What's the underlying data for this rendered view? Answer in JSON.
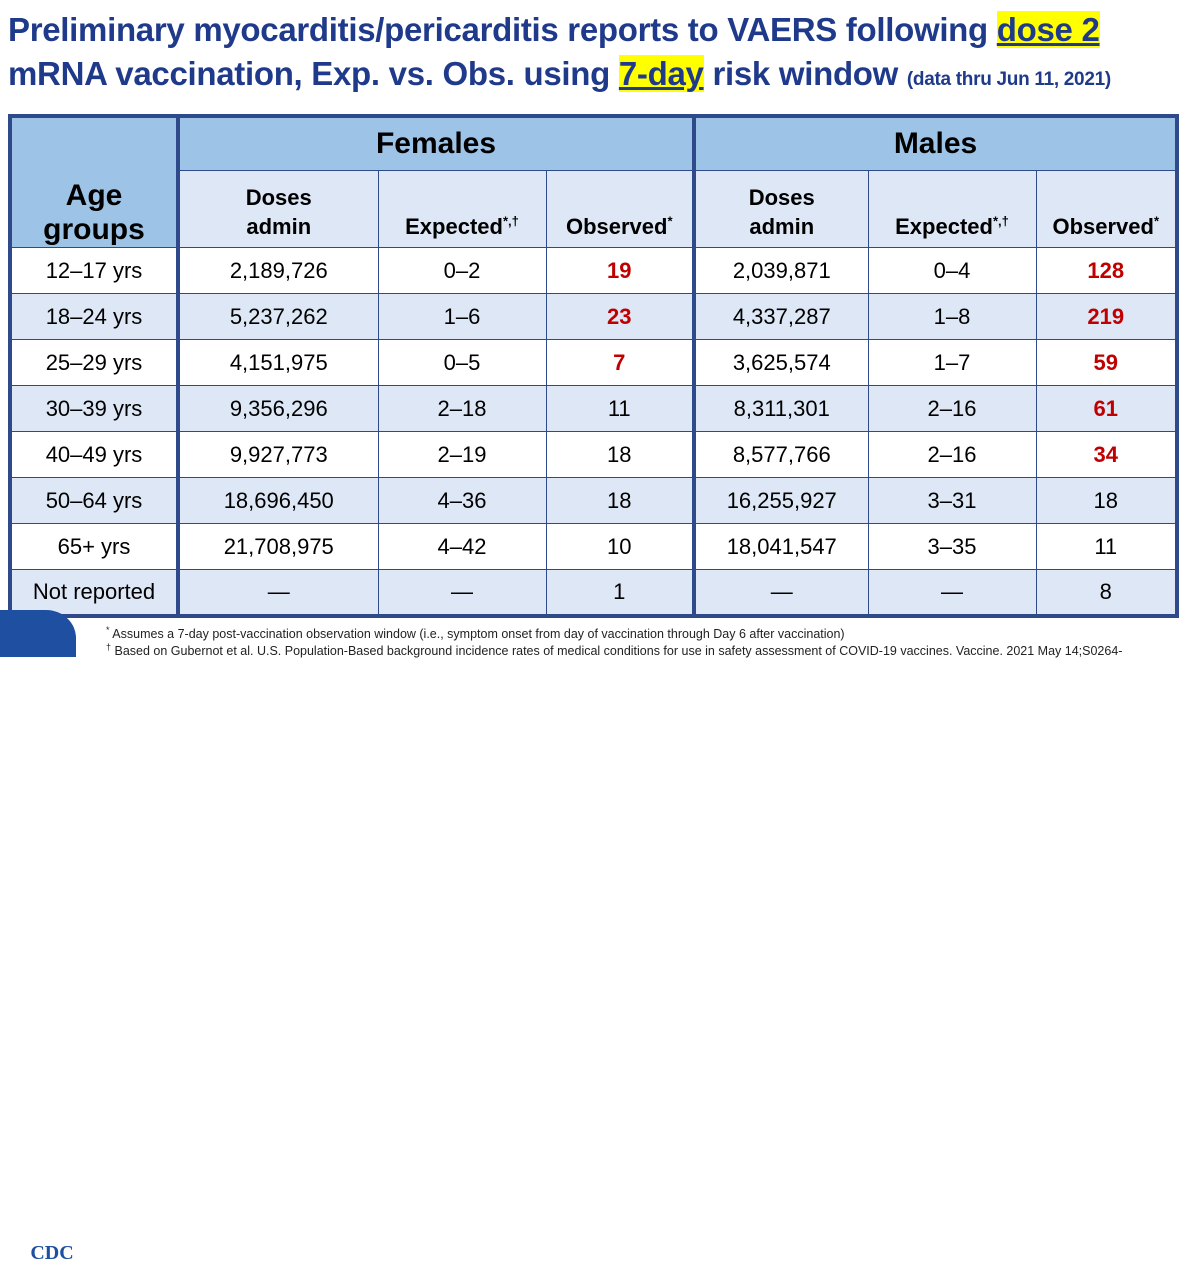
{
  "title": {
    "line1_prefix": "Preliminary myocarditis/pericarditis reports to VAERS following ",
    "line1_highlight": "dose 2",
    "line2_prefix": "mRNA vaccination, Exp. vs. Obs. using ",
    "line2_highlight": "7-day",
    "line2_suffix": " risk window ",
    "line2_note": "(data thru Jun 11, 2021)"
  },
  "table": {
    "age_header": "Age groups",
    "groups": [
      "Females",
      "Males"
    ],
    "columns": {
      "doses_line1": "Doses",
      "doses_line2": "admin",
      "expected": "Expected",
      "expected_sup": "*,†",
      "observed": "Observed",
      "observed_sup": "*"
    },
    "rows": [
      {
        "age": "12–17 yrs",
        "f_doses": "2,189,726",
        "f_expected": "0–2",
        "f_observed": "19",
        "f_hi": true,
        "m_doses": "2,039,871",
        "m_expected": "0–4",
        "m_observed": "128",
        "m_hi": true
      },
      {
        "age": "18–24 yrs",
        "f_doses": "5,237,262",
        "f_expected": "1–6",
        "f_observed": "23",
        "f_hi": true,
        "m_doses": "4,337,287",
        "m_expected": "1–8",
        "m_observed": "219",
        "m_hi": true
      },
      {
        "age": "25–29 yrs",
        "f_doses": "4,151,975",
        "f_expected": "0–5",
        "f_observed": "7",
        "f_hi": true,
        "m_doses": "3,625,574",
        "m_expected": "1–7",
        "m_observed": "59",
        "m_hi": true
      },
      {
        "age": "30–39 yrs",
        "f_doses": "9,356,296",
        "f_expected": "2–18",
        "f_observed": "11",
        "f_hi": false,
        "m_doses": "8,311,301",
        "m_expected": "2–16",
        "m_observed": "61",
        "m_hi": true
      },
      {
        "age": "40–49 yrs",
        "f_doses": "9,927,773",
        "f_expected": "2–19",
        "f_observed": "18",
        "f_hi": false,
        "m_doses": "8,577,766",
        "m_expected": "2–16",
        "m_observed": "34",
        "m_hi": true
      },
      {
        "age": "50–64 yrs",
        "f_doses": "18,696,450",
        "f_expected": "4–36",
        "f_observed": "18",
        "f_hi": false,
        "m_doses": "16,255,927",
        "m_expected": "3–31",
        "m_observed": "18",
        "m_hi": false
      },
      {
        "age": "65+ yrs",
        "f_doses": "21,708,975",
        "f_expected": "4–42",
        "f_observed": "10",
        "f_hi": false,
        "m_doses": "18,041,547",
        "m_expected": "3–35",
        "m_observed": "11",
        "m_hi": false
      },
      {
        "age": "Not reported",
        "f_doses": "—",
        "f_expected": "—",
        "f_observed": "1",
        "f_hi": false,
        "m_doses": "—",
        "m_expected": "—",
        "m_observed": "8",
        "m_hi": false
      }
    ]
  },
  "footnotes": {
    "note1_mark": "*",
    "note1": " Assumes a 7-day post-vaccination observation window (i.e., symptom onset from day of vaccination through Day 6 after vaccination)",
    "note2_mark": "†",
    "note2": " Based on Gubernot et al. U.S. Population-Based background incidence rates of medical conditions for use in safety assessment of COVID-19 vaccines. Vaccine. 2021 May 14;S0264-"
  },
  "logo": {
    "text": "CDC"
  },
  "colors": {
    "title": "#1f3a8a",
    "highlight": "#ffff00",
    "header_dark": "#9dc3e6",
    "header_light": "#dde7f5",
    "border": "#2e4a8a",
    "observed_high": "#c00000"
  }
}
